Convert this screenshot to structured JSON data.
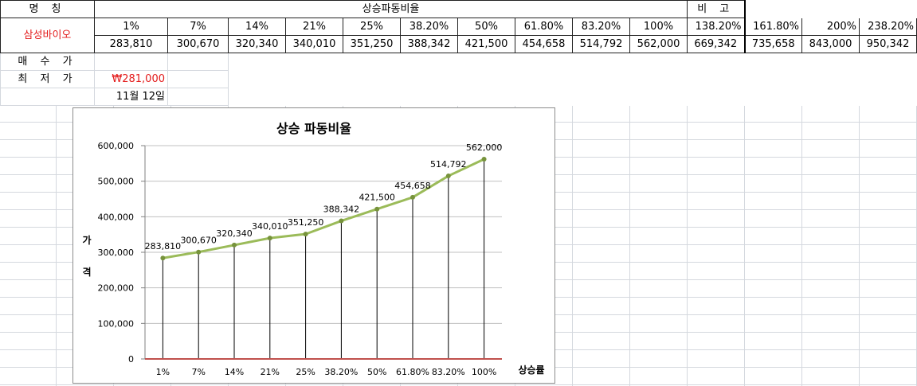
{
  "sheet": {
    "header_name_label": "명 칭",
    "header_ratio_label": "상승파동비율",
    "header_note_label": "비 고",
    "stock_name": "삼성바이오",
    "ratios": [
      "1%",
      "7%",
      "14%",
      "21%",
      "25%",
      "38.20%",
      "50%",
      "61.80%",
      "83.20%",
      "100%",
      "138.20%",
      "161.80%",
      "200%",
      "238.20%"
    ],
    "prices": [
      "283,810",
      "300,670",
      "320,340",
      "340,010",
      "351,250",
      "388,342",
      "421,500",
      "454,658",
      "514,792",
      "562,000",
      "669,342",
      "735,658",
      "843,000",
      "950,342"
    ],
    "buy_price_label": "매 수 가",
    "low_price_label": "최 저 가",
    "low_price_value": "₩281,000",
    "date_value": "11월 12일"
  },
  "chart_data": {
    "type": "line",
    "title": "상승 파동비율",
    "xlabel": "상승률",
    "ylabel": "가격",
    "categories": [
      "1%",
      "7%",
      "14%",
      "21%",
      "25%",
      "38.20%",
      "50%",
      "61.80%",
      "83.20%",
      "100%"
    ],
    "values": [
      283810,
      300670,
      320340,
      340010,
      351250,
      388342,
      421500,
      454658,
      514792,
      562000
    ],
    "data_labels": [
      "283,810",
      "300,670",
      "320,340",
      "340,010",
      "351,250",
      "388,342",
      "421,500",
      "454,658",
      "514,792",
      "562,000"
    ],
    "ylim": [
      0,
      600000
    ],
    "yticks": [
      0,
      100000,
      200000,
      300000,
      400000,
      500000,
      600000
    ],
    "ytick_labels": [
      "0",
      "100,000",
      "200,000",
      "300,000",
      "400,000",
      "500,000",
      "600,000"
    ],
    "grid": true,
    "drop_lines": true,
    "colors": {
      "line": "#9bbb59",
      "marker": "#77933c",
      "drop": "#000000",
      "baseline": "#c0504d",
      "grid": "#c0c0c0"
    }
  }
}
